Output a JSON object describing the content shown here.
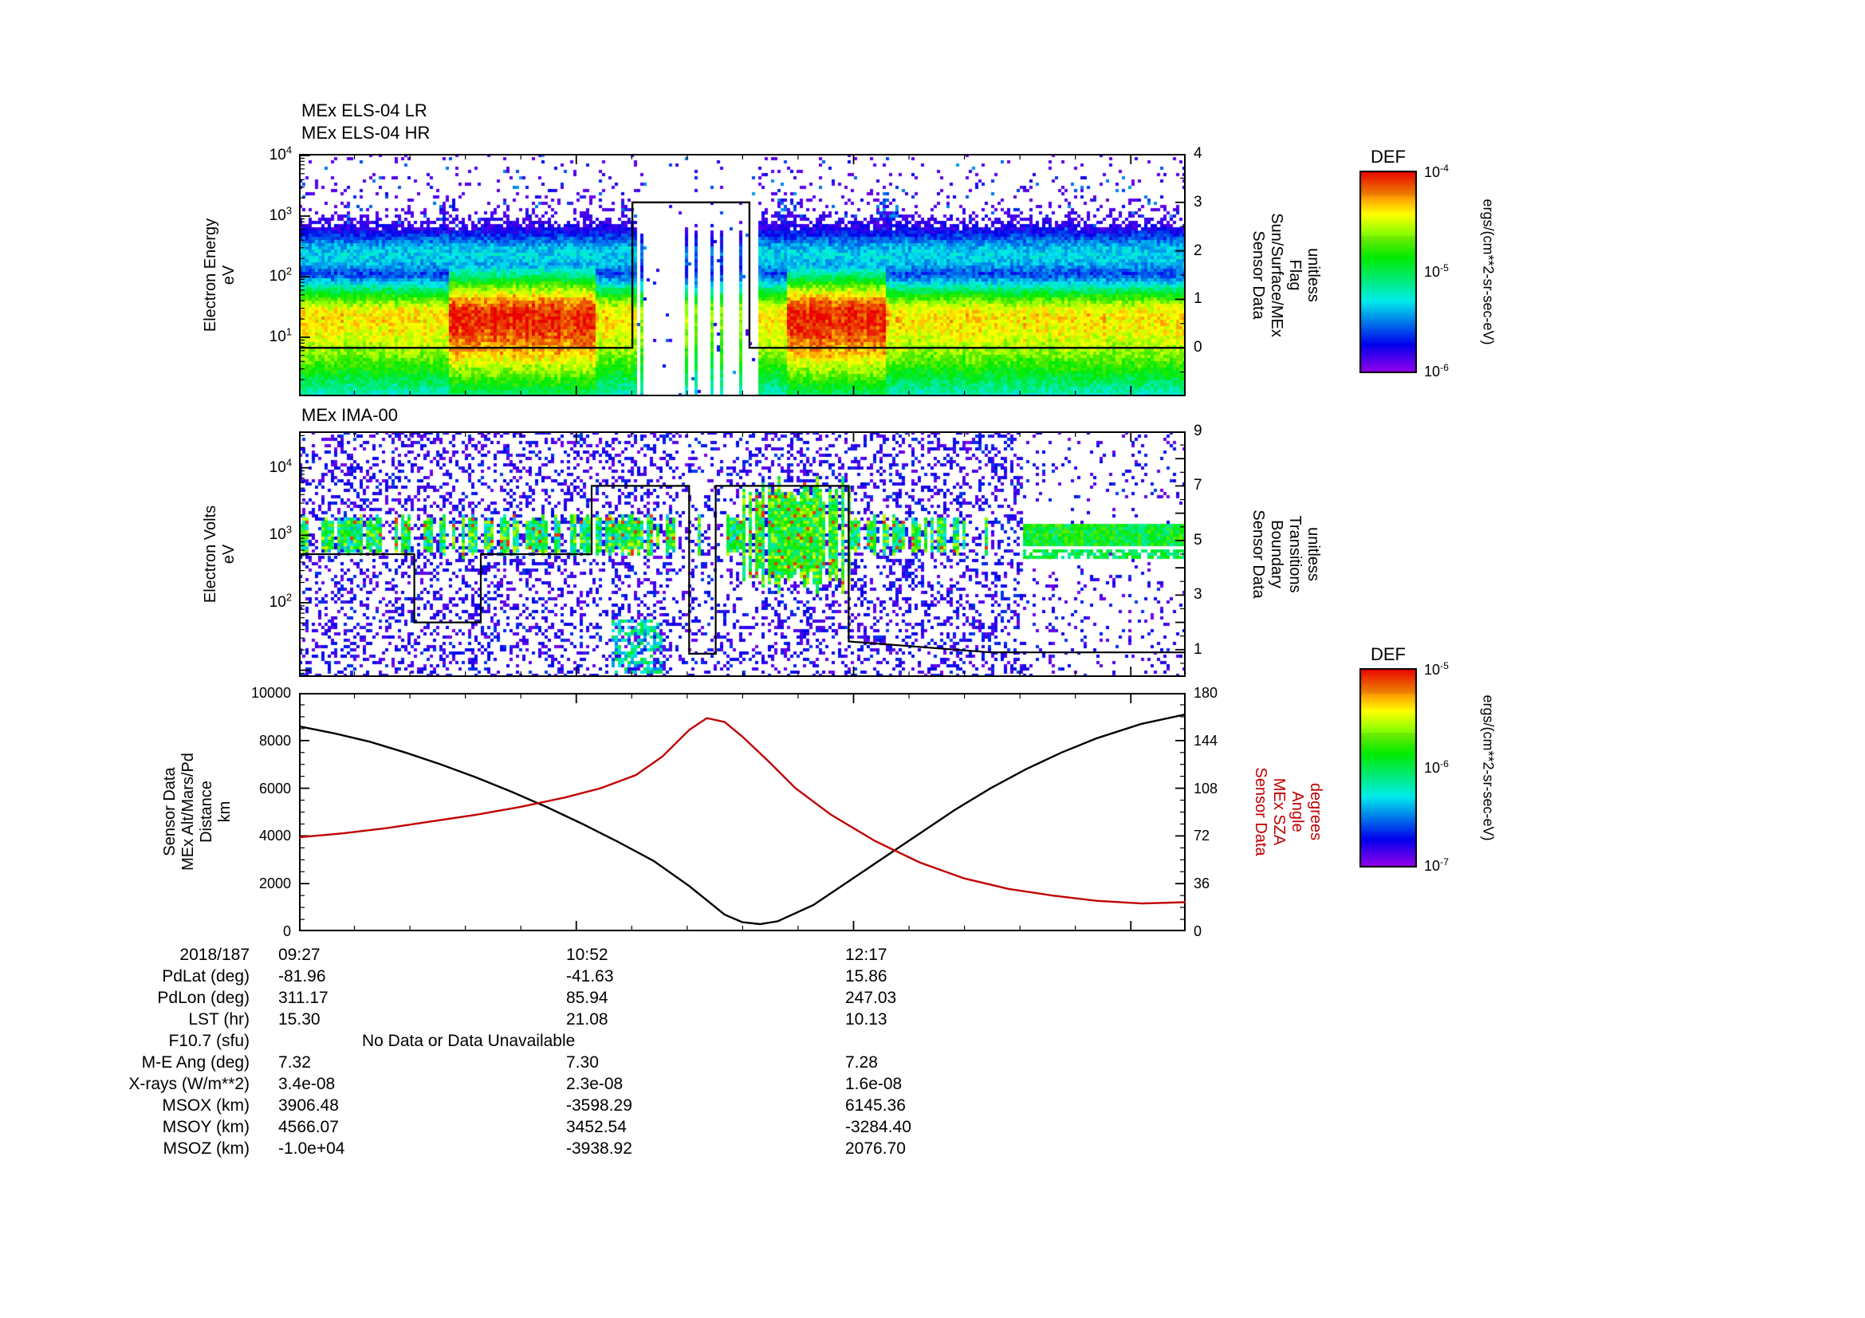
{
  "figure": {
    "bg": "#ffffff",
    "accent_red": "#c00000"
  },
  "els": {
    "title_lr": "MEx ELS-04 LR",
    "title_hr": "MEx ELS-04 HR",
    "ylabel1": "Electron Energy",
    "ylabel2": "eV",
    "ytick_exps": [
      "4",
      "3",
      "2",
      "1"
    ],
    "rlabel1": "Sensor Data",
    "rlabel2": "Sun/Surface/MEx",
    "rlabel3": "Flag",
    "rlabel4": "unitless",
    "rticks": [
      "4",
      "3",
      "2",
      "1",
      "0"
    ]
  },
  "ima": {
    "title": "MEx IMA-00",
    "ylabel1": "Electron Volts",
    "ylabel2": "eV",
    "ytick_exps": [
      "4",
      "3",
      "2"
    ],
    "rlabel1": "Sensor Data",
    "rlabel2": "Boundary",
    "rlabel3": "Transitions",
    "rlabel4": "unitless",
    "rticks": [
      "9",
      "7",
      "5",
      "3",
      "1"
    ]
  },
  "alt": {
    "llabel1": "Sensor Data",
    "llabel2": "MEx Alt/Mars/Pd",
    "llabel3": "Distance",
    "llabel4": "km",
    "lticks": [
      "10000",
      "8000",
      "6000",
      "4000",
      "2000",
      "0"
    ],
    "rlabel1": "Sensor Data",
    "rlabel2": "MEx SZA",
    "rlabel3": "Angle",
    "rlabel4": "degrees",
    "rticks": [
      "180",
      "144",
      "108",
      "72",
      "36",
      "0"
    ]
  },
  "colorbar1": {
    "title": "DEF",
    "tick_exps": [
      "-4",
      "-5",
      "-6"
    ],
    "unit": "ergs/(cm**2-sr-sec-eV)"
  },
  "colorbar2": {
    "title": "DEF",
    "tick_exps": [
      "-5",
      "-6",
      "-7"
    ],
    "unit": "ergs/(cm**2-sr-sec-eV)"
  },
  "table": {
    "rows": [
      {
        "label": "2018/187",
        "values": [
          "09:27",
          "10:52",
          "12:17"
        ]
      },
      {
        "label": "PdLat (deg)",
        "values": [
          "-81.96",
          "-41.63",
          "15.86"
        ]
      },
      {
        "label": "PdLon (deg)",
        "values": [
          "311.17",
          "85.94",
          "247.03"
        ]
      },
      {
        "label": "LST (hr)",
        "values": [
          "15.30",
          "21.08",
          "10.13"
        ]
      },
      {
        "label": "F10.7 (sfu)",
        "values": [],
        "note": "No Data or Data Unavailable"
      },
      {
        "label": "M-E Ang (deg)",
        "values": [
          "7.32",
          "7.30",
          "7.28"
        ]
      },
      {
        "label": "X-rays (W/m**2)",
        "values": [
          "3.4e-08",
          "2.3e-08",
          "1.6e-08"
        ]
      },
      {
        "label": "MSOX (km)",
        "values": [
          "3906.48",
          "-3598.29",
          "6145.36"
        ]
      },
      {
        "label": "MSOY (km)",
        "values": [
          "4566.07",
          "3452.54",
          "-3284.40"
        ]
      },
      {
        "label": "MSOZ (km)",
        "values": [
          "-1.0e+04",
          "-3938.92",
          "2076.70"
        ]
      }
    ]
  },
  "chart_data": [
    {
      "type": "heatmap",
      "id": "els",
      "title": "MEx ELS-04 LR / MEx ELS-04 HR",
      "x_axis": {
        "start": "2018/187 09:27",
        "tick_labels": [
          "09:27",
          "10:52",
          "12:17"
        ],
        "tick_spacing_min": 85
      },
      "y_axis": {
        "label": "Electron Energy (eV)",
        "scale": "log10",
        "top_log10": 4.026,
        "span_decades": 4.0,
        "tick_values": [
          10000,
          1000,
          100,
          10
        ]
      },
      "z_axis": {
        "label": "DEF",
        "unit": "ergs/(cm**2-sr-sec-eV)",
        "tick_values": [
          "1e-4",
          "1e-5",
          "1e-6"
        ]
      },
      "features": {
        "main_band_center_log10": 1.35,
        "upper_band_center_log10": 2.35,
        "hot_red_intervals_xfrac": [
          [
            0.168,
            0.333
          ],
          [
            0.549,
            0.659
          ]
        ],
        "data_gap_xfrac": [
          0.379,
          0.517
        ],
        "vertical_streaks_xfrac": [
          0.168,
          0.549,
          0.662
        ]
      },
      "flag_overlay": {
        "label": "Sensor Data Sun/Surface/MEx Flag (unitless)",
        "axis_range": [
          -1,
          4
        ],
        "steps": [
          [
            0,
            0.376,
            0
          ],
          [
            0.376,
            0.508,
            3
          ],
          [
            0.508,
            1,
            0
          ]
        ]
      }
    },
    {
      "type": "heatmap",
      "id": "ima",
      "title": "MEx IMA-00",
      "x_axis": {
        "start": "2018/187 09:27",
        "tick_labels": [
          "09:27",
          "10:52",
          "12:17"
        ],
        "tick_spacing_min": 85
      },
      "y_axis": {
        "label": "Electron Volts (eV)",
        "scale": "log10",
        "top_log10": 4.54,
        "span_decades": 3.64,
        "tick_values": [
          10000,
          1000,
          100
        ]
      },
      "z_axis": {
        "label": "DEF",
        "unit": "ergs/(cm**2-sr-sec-eV)",
        "tick_values": [
          "1e-5",
          "1e-6",
          "1e-7"
        ]
      },
      "features": {
        "band_center_log10": 3.0,
        "patchy_band_xfrac": [
          0,
          0.42
        ],
        "sparse_xfrac": [
          0.42,
          0.5
        ],
        "green_streaks_xfrac": [
          0.5,
          0.62
        ],
        "patchy_band2_xfrac": [
          0.62,
          0.75
        ],
        "smooth_band_xfrac": [
          0.815,
          1.0
        ],
        "low_energy_cluster": {
          "xfrac": [
            0.35,
            0.41
          ],
          "log10_range": [
            0.95,
            1.75
          ]
        }
      },
      "boundary_overlay": {
        "label": "Sensor Data Boundary Transitions (unitless)",
        "axis_range": [
          0,
          9
        ],
        "points": [
          [
            0,
            4.5
          ],
          [
            0.13,
            4.5
          ],
          [
            0.13,
            2
          ],
          [
            0.205,
            2
          ],
          [
            0.205,
            4.5
          ],
          [
            0.33,
            4.5
          ],
          [
            0.33,
            7
          ],
          [
            0.44,
            7
          ],
          [
            0.44,
            0.85
          ],
          [
            0.47,
            0.85
          ],
          [
            0.47,
            7
          ],
          [
            0.62,
            7
          ],
          [
            0.62,
            1.3
          ],
          [
            0.78,
            0.9
          ],
          [
            1,
            0.9
          ]
        ]
      }
    },
    {
      "type": "line",
      "id": "alt_sza",
      "x_axis": {
        "tick_labels": [
          "09:27",
          "10:52",
          "12:17"
        ]
      },
      "series": [
        {
          "name": "MEx Alt/Mars/Pd Distance",
          "unit": "km",
          "color": "#000000",
          "axis": "left",
          "ylim": [
            0,
            10000
          ],
          "x": [
            0,
            0.04,
            0.08,
            0.12,
            0.16,
            0.2,
            0.24,
            0.28,
            0.32,
            0.36,
            0.4,
            0.44,
            0.46,
            0.48,
            0.5,
            0.52,
            0.54,
            0.58,
            0.62,
            0.66,
            0.7,
            0.74,
            0.78,
            0.82,
            0.86,
            0.9,
            0.95,
            1
          ],
          "y": [
            8600,
            8300,
            7950,
            7500,
            7000,
            6450,
            5850,
            5200,
            4500,
            3750,
            2950,
            1900,
            1300,
            700,
            380,
            300,
            420,
            1100,
            2100,
            3100,
            4100,
            5100,
            6000,
            6800,
            7500,
            8100,
            8700,
            9100
          ]
        },
        {
          "name": "MEx SZA Angle",
          "unit": "degrees",
          "color": "#c00000",
          "axis": "right",
          "ylim": [
            0,
            180
          ],
          "x": [
            0,
            0.05,
            0.1,
            0.15,
            0.2,
            0.25,
            0.3,
            0.34,
            0.38,
            0.41,
            0.44,
            0.46,
            0.48,
            0.5,
            0.53,
            0.56,
            0.6,
            0.65,
            0.7,
            0.75,
            0.8,
            0.85,
            0.9,
            0.95,
            1
          ],
          "y": [
            71,
            74,
            78,
            83,
            88,
            94,
            101,
            108,
            118,
            132,
            152,
            161,
            158,
            147,
            128,
            108,
            88,
            68,
            52,
            40,
            32,
            27,
            23,
            21,
            22
          ]
        }
      ]
    }
  ]
}
